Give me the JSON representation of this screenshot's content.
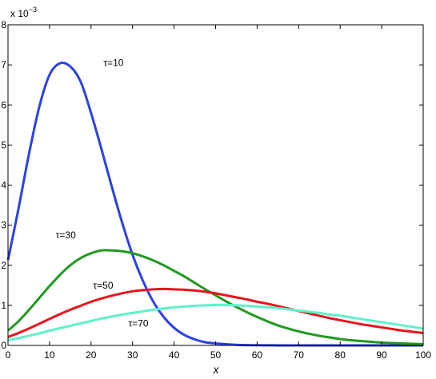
{
  "chart_data": {
    "type": "line",
    "xlabel": "x",
    "ylabel": "",
    "xlim": [
      0,
      100
    ],
    "ylim": [
      0,
      8
    ],
    "x_ticks": [
      "0",
      "10",
      "20",
      "30",
      "40",
      "50",
      "60",
      "70",
      "80",
      "90",
      "100"
    ],
    "y_ticks": [
      "0",
      "1",
      "2",
      "3",
      "4",
      "5",
      "6",
      "7",
      "8"
    ],
    "y_exponent": {
      "base": "x 10",
      "power": "−3"
    },
    "grid": false,
    "x": [
      0,
      2.5,
      5,
      7.5,
      10,
      12.5,
      15,
      17.5,
      20,
      22.5,
      25,
      27.5,
      30,
      32.5,
      35,
      37.5,
      40,
      42.5,
      45,
      47.5,
      50,
      52.5,
      55,
      57.5,
      60,
      62.5,
      65,
      67.5,
      70,
      72.5,
      75,
      77.5,
      80,
      82.5,
      85,
      87.5,
      90,
      92.5,
      95,
      97.5,
      100
    ],
    "series": [
      {
        "name": "τ=10",
        "color": "#2b41e6",
        "values": [
          2.13,
          3.4,
          4.75,
          5.94,
          6.75,
          7.04,
          6.96,
          6.58,
          5.8,
          4.9,
          3.96,
          3.06,
          2.26,
          1.61,
          1.09,
          0.71,
          0.44,
          0.26,
          0.15,
          0.08,
          0.05,
          0.03,
          0.015,
          0.008,
          0.004,
          0.002,
          0.001,
          0.0006,
          0.0003,
          0.0001,
          0.0001,
          0,
          0,
          0,
          0,
          0,
          0,
          0,
          0,
          0,
          0
        ]
      },
      {
        "name": "τ=30",
        "color": "#1f9a1f",
        "values": [
          0.37,
          0.6,
          0.88,
          1.18,
          1.48,
          1.76,
          2.0,
          2.18,
          2.3,
          2.37,
          2.37,
          2.35,
          2.3,
          2.22,
          2.12,
          2.0,
          1.86,
          1.72,
          1.56,
          1.4,
          1.25,
          1.1,
          0.96,
          0.83,
          0.71,
          0.6,
          0.5,
          0.42,
          0.35,
          0.29,
          0.24,
          0.2,
          0.16,
          0.13,
          0.11,
          0.09,
          0.07,
          0.06,
          0.05,
          0.04,
          0.03
        ]
      },
      {
        "name": "τ=50",
        "color": "#e8141e",
        "values": [
          0.21,
          0.31,
          0.42,
          0.54,
          0.66,
          0.78,
          0.89,
          0.99,
          1.09,
          1.17,
          1.24,
          1.3,
          1.35,
          1.38,
          1.4,
          1.41,
          1.4,
          1.39,
          1.37,
          1.34,
          1.3,
          1.25,
          1.2,
          1.15,
          1.09,
          1.04,
          0.98,
          0.92,
          0.86,
          0.8,
          0.74,
          0.68,
          0.63,
          0.58,
          0.53,
          0.49,
          0.45,
          0.41,
          0.37,
          0.34,
          0.31
        ]
      },
      {
        "name": "τ=70",
        "color": "#5ef2c8",
        "values": [
          0.13,
          0.18,
          0.24,
          0.3,
          0.37,
          0.43,
          0.49,
          0.55,
          0.61,
          0.67,
          0.72,
          0.77,
          0.81,
          0.85,
          0.89,
          0.92,
          0.95,
          0.97,
          0.99,
          1.0,
          1.01,
          1.01,
          1.0,
          0.99,
          0.97,
          0.95,
          0.93,
          0.9,
          0.87,
          0.84,
          0.81,
          0.77,
          0.74,
          0.7,
          0.66,
          0.62,
          0.58,
          0.54,
          0.5,
          0.46,
          0.42
        ]
      }
    ],
    "annotations": [
      {
        "text": "τ=10",
        "x": 23,
        "y": 7.05
      },
      {
        "text": "τ=30",
        "x": 11.5,
        "y": 2.75
      },
      {
        "text": "τ=50",
        "x": 20.5,
        "y": 1.5
      },
      {
        "text": "τ=70",
        "x": 29,
        "y": 0.55
      }
    ]
  }
}
